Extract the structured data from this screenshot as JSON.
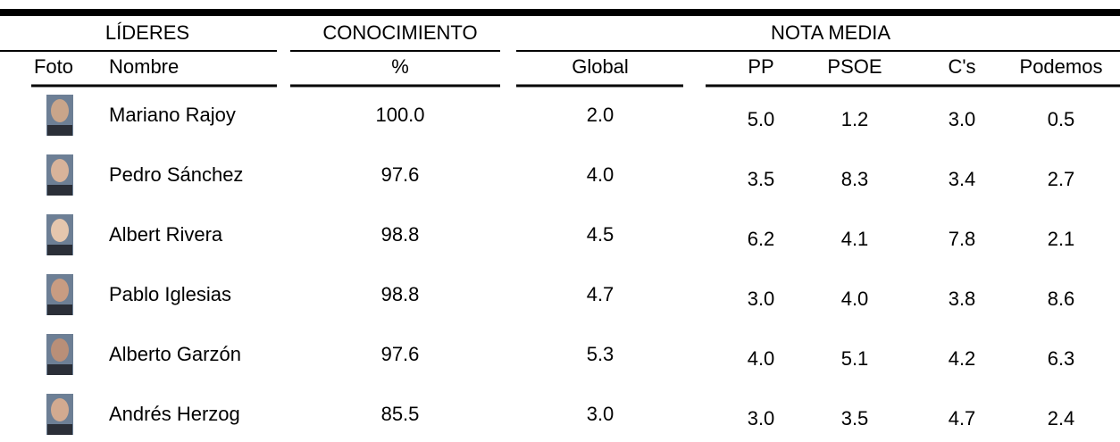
{
  "table": {
    "groups": [
      "LÍDERES",
      "CONOCIMIENTO",
      "NOTA MEDIA"
    ],
    "columns": [
      "Foto",
      "Nombre",
      "%",
      "Global",
      "PP",
      "PSOE",
      "C's",
      "Podemos"
    ],
    "rows": [
      [
        "Mariano Rajoy",
        "100.0",
        "2.0",
        "5.0",
        "1.2",
        "3.0",
        "0.5"
      ],
      [
        "Pedro Sánchez",
        "97.6",
        "4.0",
        "3.5",
        "8.3",
        "3.4",
        "2.7"
      ],
      [
        "Albert Rivera",
        "98.8",
        "4.5",
        "6.2",
        "4.1",
        "7.8",
        "2.1"
      ],
      [
        "Pablo Iglesias",
        "98.8",
        "4.7",
        "3.0",
        "4.0",
        "3.8",
        "8.6"
      ],
      [
        "Alberto Garzón",
        "97.6",
        "5.3",
        "4.0",
        "5.1",
        "4.2",
        "6.3"
      ],
      [
        "Andrés Herzog",
        "85.5",
        "3.0",
        "3.0",
        "3.5",
        "4.7",
        "2.4"
      ]
    ]
  }
}
